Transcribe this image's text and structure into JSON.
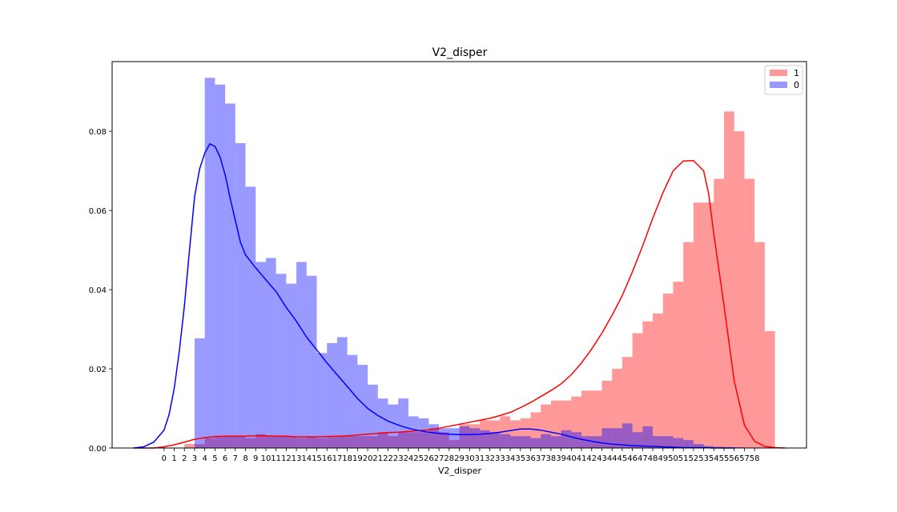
{
  "chart_data": {
    "type": "histogram-kde",
    "title": "V2_disper",
    "xlabel": "V2_disper",
    "ylabel": "",
    "xlim": [
      -5.1,
      63.1
    ],
    "ylim": [
      0,
      0.0976
    ],
    "x_ticks": [
      0,
      1,
      2,
      3,
      4,
      5,
      6,
      7,
      8,
      9,
      10,
      11,
      12,
      13,
      14,
      15,
      16,
      17,
      18,
      19,
      20,
      21,
      22,
      23,
      24,
      25,
      26,
      27,
      28,
      29,
      30,
      31,
      32,
      33,
      34,
      35,
      36,
      37,
      38,
      39,
      40,
      41,
      42,
      43,
      44,
      45,
      46,
      47,
      48,
      49,
      50,
      51,
      52,
      53,
      54,
      55,
      56,
      57,
      58
    ],
    "y_ticks": [
      0.0,
      0.02,
      0.04,
      0.06,
      0.08
    ],
    "y_tick_labels": [
      "0.00",
      "0.02",
      "0.04",
      "0.06",
      "0.08"
    ],
    "legend_position": "top-right",
    "grid": false,
    "bin_width": 1.0,
    "series": [
      {
        "name": "1",
        "color": "#ff0000",
        "bins_start": 2,
        "hist": [
          0.001,
          0.001,
          0.0025,
          0.0028,
          0.003,
          0.003,
          0.0025,
          0.0035,
          0.003,
          0.003,
          0.003,
          0.0025,
          0.003,
          0.0025,
          0.0028,
          0.003,
          0.003,
          0.003,
          0.003,
          0.004,
          0.003,
          0.004,
          0.004,
          0.004,
          0.005,
          0.004,
          0.002,
          0.006,
          0.006,
          0.007,
          0.007,
          0.008,
          0.007,
          0.0075,
          0.009,
          0.011,
          0.012,
          0.012,
          0.013,
          0.0145,
          0.0145,
          0.017,
          0.02,
          0.023,
          0.029,
          0.032,
          0.034,
          0.039,
          0.042,
          0.052,
          0.062,
          0.062,
          0.068,
          0.085,
          0.08,
          0.068,
          0.052,
          0.0295
        ],
        "kde_x": [
          -3,
          -2,
          -1,
          0,
          1,
          2,
          3,
          4,
          5,
          6,
          7,
          8,
          9,
          10,
          11,
          12,
          13,
          14,
          15,
          16,
          17,
          18,
          19,
          20,
          21,
          22,
          23,
          24,
          25,
          26,
          27,
          28,
          29,
          30,
          31,
          32,
          33,
          34,
          35,
          36,
          37,
          38,
          39,
          40,
          41,
          42,
          43,
          44,
          45,
          46,
          47,
          48,
          49,
          50,
          51,
          52,
          53,
          53.5,
          54,
          55,
          56,
          57,
          58,
          59,
          60,
          61,
          62
        ],
        "kde_y": [
          0,
          0,
          0,
          0.0003,
          0.0008,
          0.0015,
          0.0022,
          0.0026,
          0.0029,
          0.003,
          0.003,
          0.003,
          0.0031,
          0.0031,
          0.003,
          0.003,
          0.0028,
          0.0028,
          0.0028,
          0.0029,
          0.003,
          0.0031,
          0.0033,
          0.0035,
          0.0037,
          0.0039,
          0.004,
          0.0042,
          0.0044,
          0.0046,
          0.005,
          0.0055,
          0.006,
          0.0065,
          0.007,
          0.0075,
          0.0082,
          0.009,
          0.0102,
          0.0115,
          0.013,
          0.0145,
          0.0162,
          0.0185,
          0.0215,
          0.025,
          0.029,
          0.0335,
          0.0385,
          0.0445,
          0.051,
          0.058,
          0.0645,
          0.07,
          0.0725,
          0.0726,
          0.07,
          0.064,
          0.054,
          0.036,
          0.017,
          0.0058,
          0.0017,
          0.0004,
          0.0001,
          0
        ]
      },
      {
        "name": "0",
        "color": "#0000ff",
        "bins_start": 2,
        "hist": [
          0.0,
          0.0277,
          0.0935,
          0.0918,
          0.087,
          0.077,
          0.066,
          0.047,
          0.048,
          0.044,
          0.0415,
          0.047,
          0.0435,
          0.024,
          0.0265,
          0.028,
          0.0235,
          0.021,
          0.016,
          0.0125,
          0.011,
          0.0125,
          0.008,
          0.0075,
          0.006,
          0.005,
          0.005,
          0.0055,
          0.005,
          0.0045,
          0.004,
          0.0035,
          0.003,
          0.003,
          0.0025,
          0.0035,
          0.003,
          0.0045,
          0.004,
          0.003,
          0.003,
          0.005,
          0.005,
          0.0062,
          0.004,
          0.0055,
          0.003,
          0.003,
          0.0025,
          0.002,
          0.001,
          0.0005,
          0.0003,
          0.0002,
          0.0002,
          0.0001,
          0.0001,
          0.0001
        ],
        "kde_x": [
          -3,
          -2,
          -1,
          0,
          0.5,
          1,
          1.5,
          2,
          2.5,
          3,
          3.5,
          4,
          4.5,
          5,
          5.5,
          6,
          6.5,
          7,
          7.5,
          8,
          9,
          10,
          11,
          12,
          13,
          14,
          15,
          16,
          17,
          18,
          19,
          20,
          21,
          22,
          23,
          24,
          25,
          26,
          27,
          28,
          29,
          30,
          31,
          32,
          33,
          34,
          35,
          36,
          37,
          38,
          39,
          40,
          41,
          42,
          43,
          44,
          45,
          46,
          47,
          48,
          49,
          50,
          51,
          52,
          53,
          54,
          55,
          56
        ],
        "kde_y": [
          0,
          0.0003,
          0.0015,
          0.0045,
          0.0085,
          0.015,
          0.0245,
          0.036,
          0.05,
          0.0635,
          0.0705,
          0.0745,
          0.0768,
          0.0762,
          0.0735,
          0.069,
          0.063,
          0.0575,
          0.052,
          0.0488,
          0.0455,
          0.0425,
          0.0395,
          0.0355,
          0.032,
          0.028,
          0.0248,
          0.0215,
          0.0185,
          0.0155,
          0.0125,
          0.01,
          0.0082,
          0.0068,
          0.0058,
          0.005,
          0.0044,
          0.004,
          0.0037,
          0.0035,
          0.0034,
          0.0034,
          0.0035,
          0.0037,
          0.004,
          0.0044,
          0.0048,
          0.0048,
          0.0045,
          0.004,
          0.0035,
          0.0028,
          0.0022,
          0.0017,
          0.0013,
          0.001,
          0.0008,
          0.0006,
          0.0005,
          0.0004,
          0.0003,
          0.0002,
          0.0001,
          0.0001,
          0.0001,
          0,
          0,
          0
        ]
      }
    ]
  }
}
